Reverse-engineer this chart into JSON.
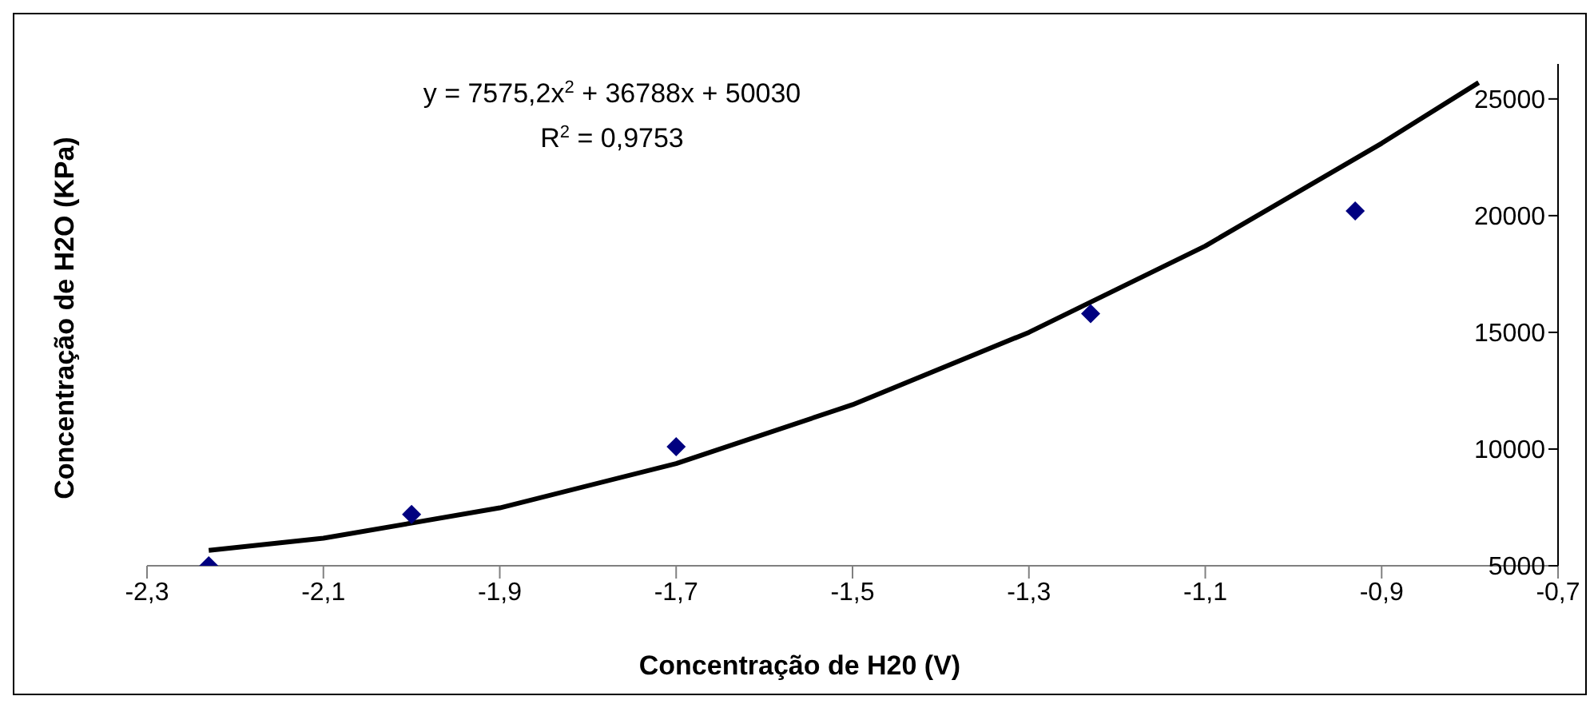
{
  "chart_data": {
    "type": "scatter",
    "xlabel": "Concentração de H20 (V)",
    "ylabel": "Concentração de H2O (KPa)",
    "annotations": [
      "y = 7575,2x$^{2}$ + 36788x + 50030",
      "R$^{2}$ = 0,9753"
    ],
    "xlim": [
      -2.3,
      -0.7
    ],
    "xticks": [
      {
        "value": -2.3,
        "label": "-2,3"
      },
      {
        "value": -2.1,
        "label": "-2,1"
      },
      {
        "value": -1.9,
        "label": "-1,9"
      },
      {
        "value": -1.7,
        "label": "-1,7"
      },
      {
        "value": -1.5,
        "label": "-1,5"
      },
      {
        "value": -1.3,
        "label": "-1,3"
      },
      {
        "value": -1.1,
        "label": "-1,1"
      },
      {
        "value": -0.9,
        "label": "-0,9"
      },
      {
        "value": -0.7,
        "label": "-0,7"
      }
    ],
    "ylim": [
      5000,
      26500
    ],
    "yticks": [
      5000,
      10000,
      15000,
      20000,
      25000
    ],
    "grid": false,
    "legend": false,
    "series": [
      {
        "color": "#000080",
        "marker": "diamond",
        "x": [
          -2.23,
          -2.0,
          -1.7,
          -1.23,
          -0.93
        ],
        "values": [
          5000,
          7200,
          10100,
          15800,
          20200
        ]
      },
      {
        "type": "line",
        "color": "#000000",
        "marker": "none",
        "line_style": "solid",
        "x": [
          -2.23,
          -2.1,
          -1.9,
          -1.7,
          -1.5,
          -1.3,
          -1.1,
          -0.9,
          -0.79
        ],
        "values": [
          5660,
          6180,
          7480,
          9380,
          11900,
          15000,
          18700,
          23100,
          25700
        ]
      }
    ]
  }
}
